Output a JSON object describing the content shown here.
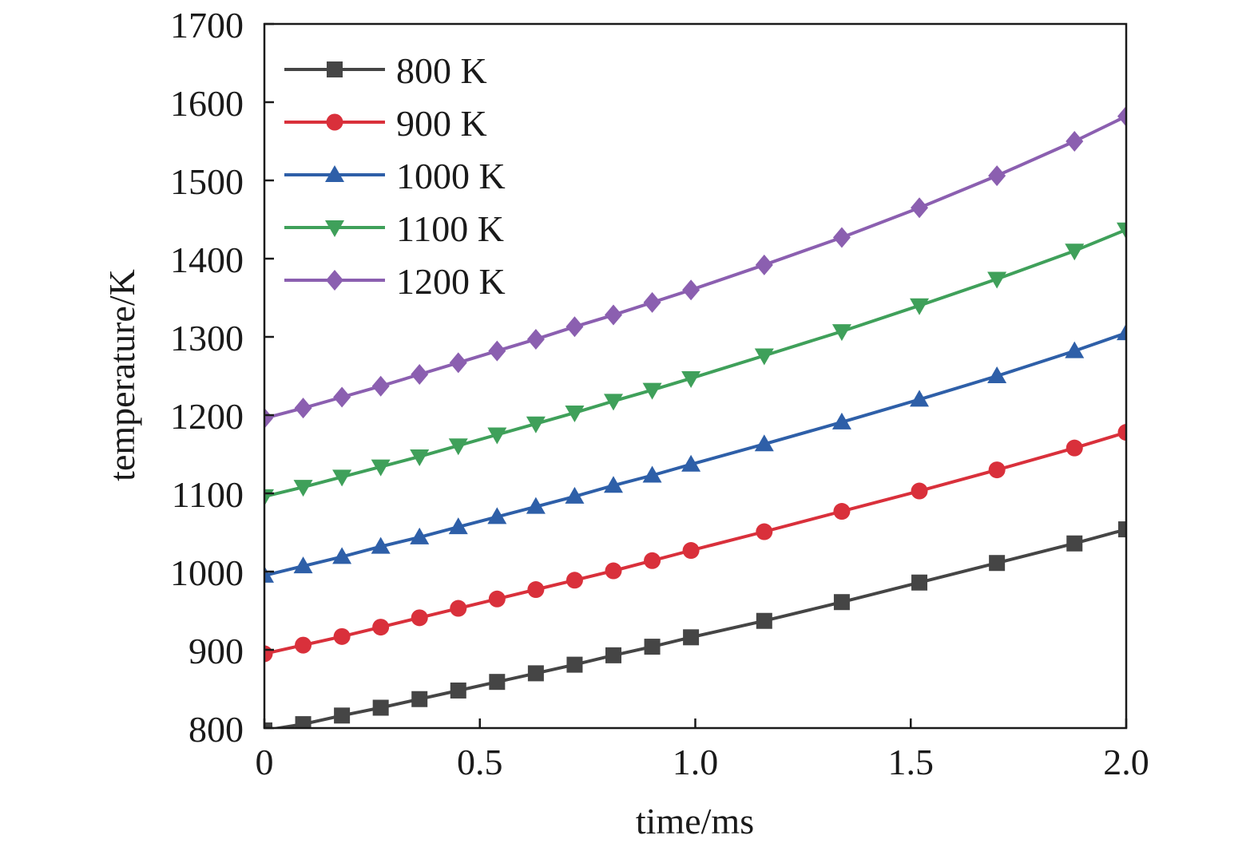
{
  "chart_data": {
    "type": "line",
    "title": "",
    "xlabel": "time/ms",
    "ylabel": "temperature/K",
    "xlim": [
      0,
      2.0
    ],
    "ylim": [
      800,
      1700
    ],
    "xticks": [
      0,
      0.5,
      1.0,
      1.5,
      2.0
    ],
    "xtick_labels": [
      "0",
      "0.5",
      "1.0",
      "1.5",
      "2.0"
    ],
    "yticks": [
      800,
      900,
      1000,
      1100,
      1200,
      1300,
      1400,
      1500,
      1600,
      1700
    ],
    "ytick_labels": [
      "800",
      "900",
      "1000",
      "1100",
      "1200",
      "1300",
      "1400",
      "1500",
      "1600",
      "1700"
    ],
    "grid": false,
    "legend_position": "top-left",
    "series": [
      {
        "name": "800 K",
        "color": "#454545",
        "marker": "square",
        "x": [
          0,
          0.09,
          0.18,
          0.27,
          0.36,
          0.45,
          0.54,
          0.63,
          0.72,
          0.81,
          0.9,
          0.99,
          1.16,
          1.34,
          1.52,
          1.7,
          1.88,
          2.0
        ],
        "y": [
          797,
          805,
          816,
          826,
          837,
          848,
          859,
          870,
          881,
          893,
          904,
          916,
          937,
          961,
          986,
          1011,
          1036,
          1054
        ]
      },
      {
        "name": "900 K",
        "color": "#d9303b",
        "marker": "circle",
        "x": [
          0,
          0.09,
          0.18,
          0.27,
          0.36,
          0.45,
          0.54,
          0.63,
          0.72,
          0.81,
          0.9,
          0.99,
          1.16,
          1.34,
          1.52,
          1.7,
          1.88,
          2.0
        ],
        "y": [
          895,
          906,
          917,
          929,
          941,
          953,
          965,
          977,
          989,
          1001,
          1014,
          1027,
          1051,
          1077,
          1103,
          1130,
          1158,
          1178
        ]
      },
      {
        "name": "1000 K",
        "color": "#2e5fa8",
        "marker": "triangle-up",
        "x": [
          0,
          0.09,
          0.18,
          0.27,
          0.36,
          0.45,
          0.54,
          0.63,
          0.72,
          0.81,
          0.9,
          0.99,
          1.16,
          1.34,
          1.52,
          1.7,
          1.88,
          2.0
        ],
        "y": [
          995,
          1007,
          1019,
          1032,
          1044,
          1057,
          1070,
          1083,
          1096,
          1110,
          1123,
          1137,
          1163,
          1191,
          1220,
          1250,
          1282,
          1305
        ]
      },
      {
        "name": "1100 K",
        "color": "#3fa05a",
        "marker": "triangle-down",
        "x": [
          0,
          0.09,
          0.18,
          0.27,
          0.36,
          0.45,
          0.54,
          0.63,
          0.72,
          0.81,
          0.9,
          0.99,
          1.16,
          1.34,
          1.52,
          1.7,
          1.88,
          2.0
        ],
        "y": [
          1096,
          1108,
          1121,
          1134,
          1147,
          1161,
          1175,
          1189,
          1203,
          1218,
          1232,
          1247,
          1276,
          1307,
          1340,
          1374,
          1410,
          1437
        ]
      },
      {
        "name": "1200 K",
        "color": "#8b5fb0",
        "marker": "diamond",
        "x": [
          0,
          0.09,
          0.18,
          0.27,
          0.36,
          0.45,
          0.54,
          0.63,
          0.72,
          0.81,
          0.9,
          0.99,
          1.16,
          1.34,
          1.52,
          1.7,
          1.88,
          2.0
        ],
        "y": [
          1196,
          1209,
          1223,
          1237,
          1252,
          1267,
          1282,
          1297,
          1313,
          1328,
          1344,
          1360,
          1392,
          1427,
          1465,
          1506,
          1550,
          1582
        ]
      }
    ]
  }
}
